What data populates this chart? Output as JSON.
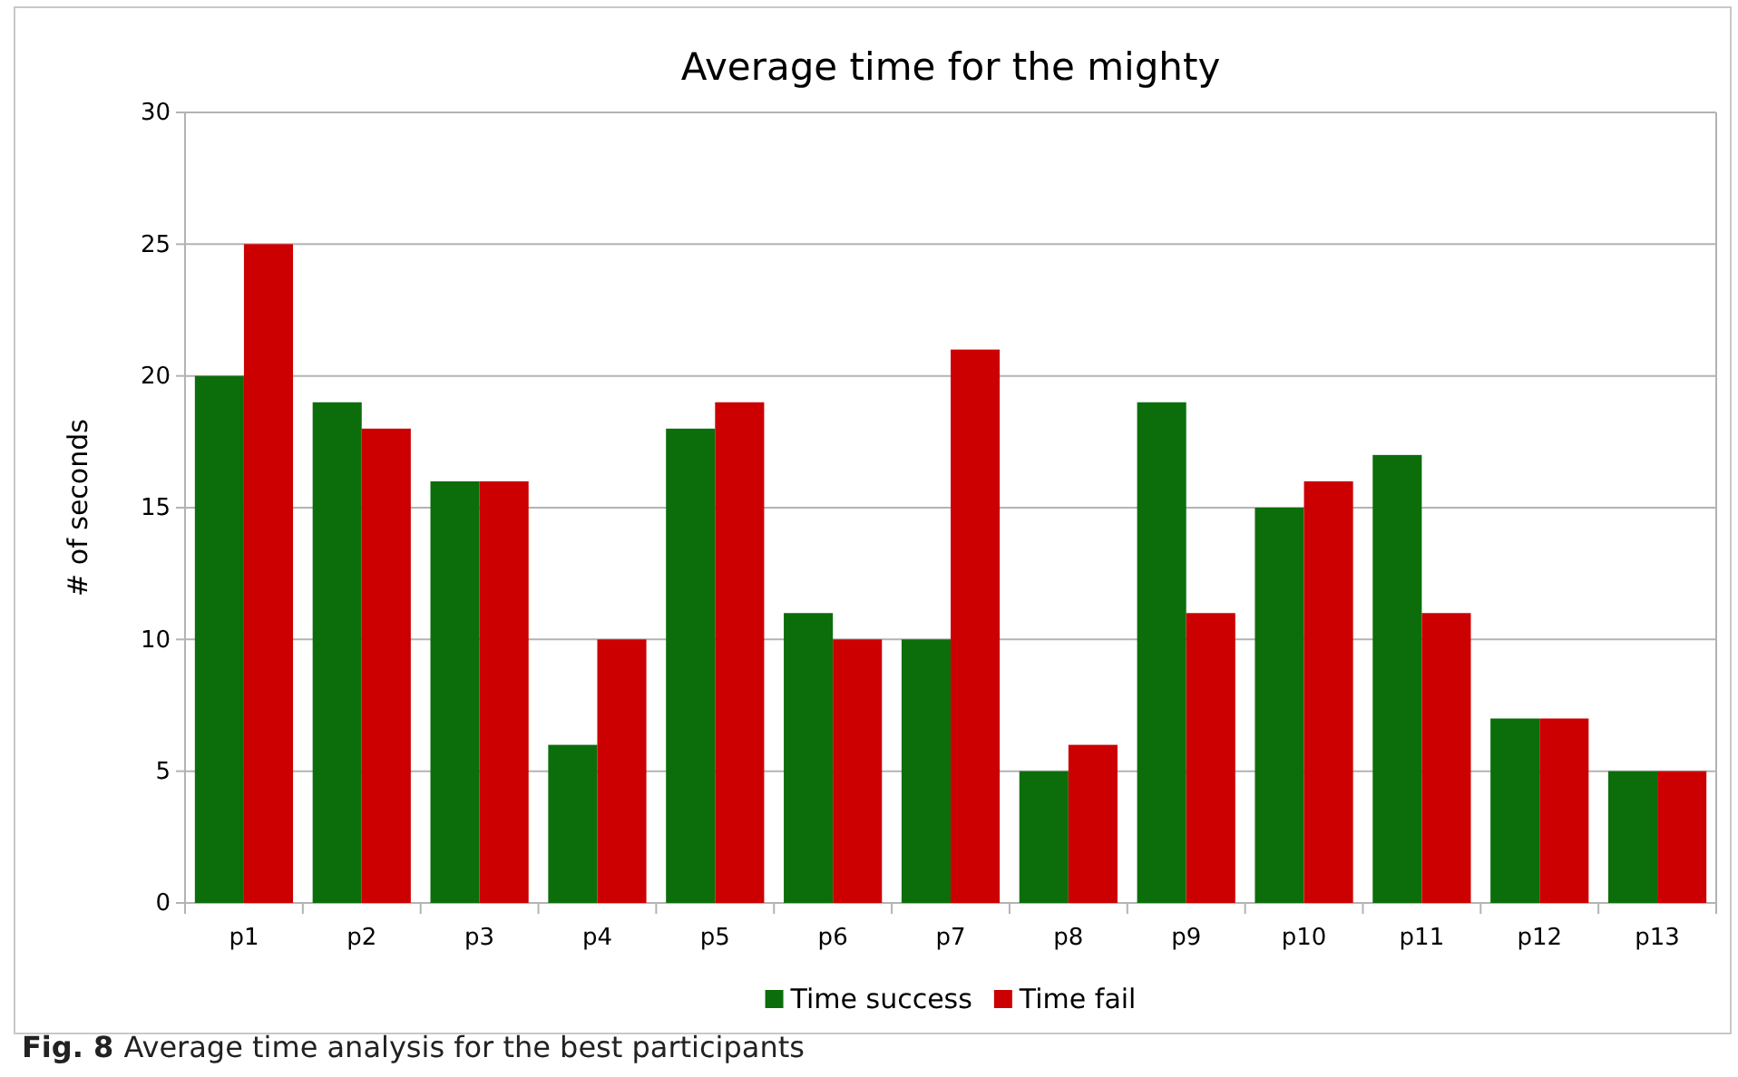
{
  "chart_data": {
    "type": "bar",
    "title": "Average time for the mighty",
    "ylabel": "# of seconds",
    "categories": [
      "p1",
      "p2",
      "p3",
      "p4",
      "p5",
      "p6",
      "p7",
      "p8",
      "p9",
      "p10",
      "p11",
      "p12",
      "p13"
    ],
    "series": [
      {
        "name": "Time success",
        "color": "#0b6e0b",
        "values": [
          20,
          19,
          16,
          6,
          18,
          11,
          10,
          5,
          19,
          15,
          17,
          7,
          5
        ]
      },
      {
        "name": "Time fail",
        "color": "#cc0000",
        "values": [
          25,
          18,
          16,
          10,
          19,
          10,
          21,
          6,
          11,
          16,
          11,
          7,
          5
        ]
      }
    ],
    "ylim": [
      0,
      30
    ],
    "yticks": [
      0,
      5,
      10,
      15,
      20,
      25,
      30
    ],
    "grid": "y",
    "legend": "bottom",
    "annotations": [
      "Fig. 8 Average time analysis for the best participants"
    ]
  }
}
